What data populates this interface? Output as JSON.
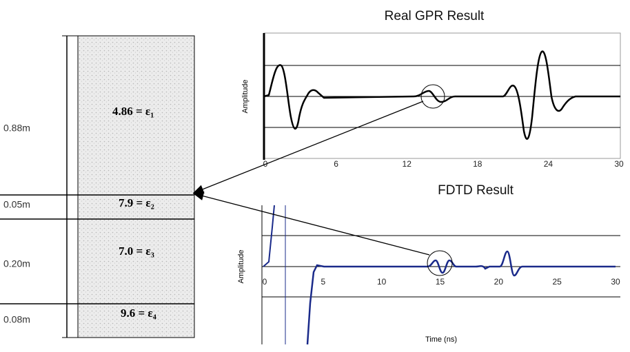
{
  "gpr": {
    "title": "Real GPR Result",
    "y_label": "Amplitude",
    "x_ticks": [
      "0",
      "6",
      "12",
      "18",
      "24",
      "30"
    ]
  },
  "fdtd": {
    "title": "FDTD Result",
    "y_label": "Amplitude",
    "x_label": "Time (ns)",
    "x_ticks": [
      "0",
      "5",
      "10",
      "15",
      "20",
      "25",
      "30"
    ]
  },
  "layers": [
    {
      "thickness": "0.88m",
      "permittivity": "4.86 = ε₁"
    },
    {
      "thickness": "0.05m",
      "permittivity": "7.9 = ε₂"
    },
    {
      "thickness": "0.20m",
      "permittivity": "7.0 = ε₃"
    },
    {
      "thickness": "0.08m",
      "permittivity": "9.6 = ε₄"
    }
  ]
}
